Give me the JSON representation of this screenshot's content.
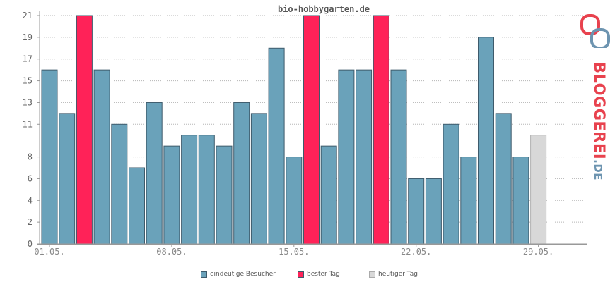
{
  "chart_data": {
    "type": "bar",
    "title": "bio-hobbygarten.de",
    "ylim": [
      0,
      22
    ],
    "yticks": [
      0,
      2,
      4,
      6,
      8,
      11,
      13,
      15,
      17,
      19,
      21
    ],
    "xticks": [
      "01.05.",
      "08.05.",
      "15.05.",
      "22.05.",
      "29.05."
    ],
    "xtick_index": [
      1,
      8,
      15,
      22,
      29
    ],
    "grid": true,
    "legend_position": "bottom",
    "colors": {
      "normal": "#6aa2ba",
      "best": "#ff2258",
      "today": "#d8d8d8",
      "edge": "#3e5a6b"
    },
    "categories": [
      "01.05.",
      "02.05.",
      "03.05.",
      "04.05.",
      "05.05.",
      "06.05.",
      "07.05.",
      "08.05.",
      "09.05.",
      "10.05.",
      "11.05.",
      "12.05.",
      "13.05.",
      "14.05.",
      "15.05.",
      "16.05.",
      "17.05.",
      "18.05.",
      "19.05.",
      "20.05.",
      "21.05.",
      "22.05.",
      "23.05.",
      "24.05.",
      "25.05.",
      "26.05.",
      "27.05.",
      "28.05.",
      "29.05."
    ],
    "series": [
      {
        "name": "eindeutige Besucher",
        "values": [
          16,
          12,
          21,
          16,
          11,
          7,
          13,
          9,
          10,
          10,
          9,
          13,
          12,
          18,
          8,
          21,
          9,
          16,
          16,
          21,
          16,
          6,
          6,
          11,
          8,
          19,
          12,
          8,
          10
        ],
        "kinds": [
          "normal",
          "normal",
          "best",
          "normal",
          "normal",
          "normal",
          "normal",
          "normal",
          "normal",
          "normal",
          "normal",
          "normal",
          "normal",
          "normal",
          "normal",
          "best",
          "normal",
          "normal",
          "normal",
          "best",
          "normal",
          "normal",
          "normal",
          "normal",
          "normal",
          "normal",
          "normal",
          "normal",
          "today"
        ]
      }
    ],
    "legend": [
      "eindeutige Besucher",
      "bester Tag",
      "heutiger Tag"
    ]
  },
  "logo": {
    "word": "BLOGGEREI",
    "suffix": ".DE"
  }
}
